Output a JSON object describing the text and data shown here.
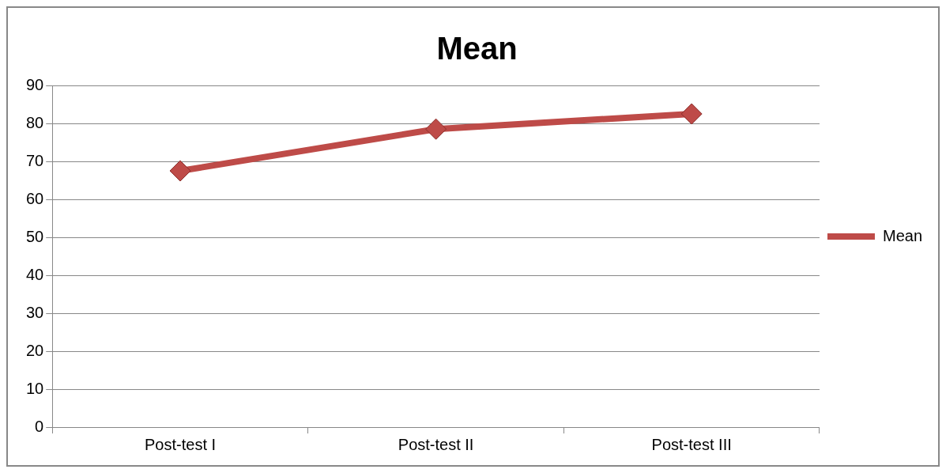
{
  "chart_data": {
    "type": "line",
    "title": "Mean",
    "categories": [
      "Post-test I",
      "Post-test II",
      "Post-test III"
    ],
    "series": [
      {
        "name": "Mean",
        "color": "#be4b48",
        "values": [
          67.5,
          78.5,
          82.5
        ]
      }
    ],
    "ylim": [
      0,
      90
    ],
    "yticks": [
      0,
      10,
      20,
      30,
      40,
      50,
      60,
      70,
      80,
      90
    ],
    "grid": "y",
    "legend": "right",
    "marker": "diamond",
    "line_style": "solid"
  }
}
